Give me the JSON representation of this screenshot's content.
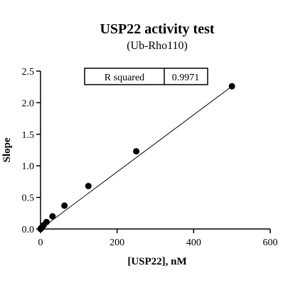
{
  "chart_data": {
    "type": "scatter",
    "title": "USP22 activity test",
    "subtitle": "(Ub-Rho110)",
    "xlabel": "[USP22], nM",
    "ylabel": "Slope",
    "xlim": [
      0,
      600
    ],
    "ylim": [
      0,
      2.5
    ],
    "x_ticks": [
      "0",
      "200",
      "400",
      "600"
    ],
    "y_ticks": [
      "0.0",
      "0.5",
      "1.0",
      "1.5",
      "2.0",
      "2.5"
    ],
    "points": [
      {
        "x": 0,
        "y": 0.0
      },
      {
        "x": 1,
        "y": 0.01
      },
      {
        "x": 2,
        "y": 0.015
      },
      {
        "x": 4,
        "y": 0.03
      },
      {
        "x": 8,
        "y": 0.06
      },
      {
        "x": 15.6,
        "y": 0.11
      },
      {
        "x": 31.25,
        "y": 0.2
      },
      {
        "x": 62.5,
        "y": 0.37
      },
      {
        "x": 125,
        "y": 0.68
      },
      {
        "x": 250,
        "y": 1.23
      },
      {
        "x": 500,
        "y": 2.26
      }
    ],
    "fit_line": {
      "x": [
        0,
        500
      ],
      "y": [
        0.0,
        2.26
      ]
    },
    "stats_box": {
      "label": "R squared",
      "value": "0.9971"
    },
    "grid": false,
    "marker_color": "#000000",
    "line_color": "#000000"
  }
}
